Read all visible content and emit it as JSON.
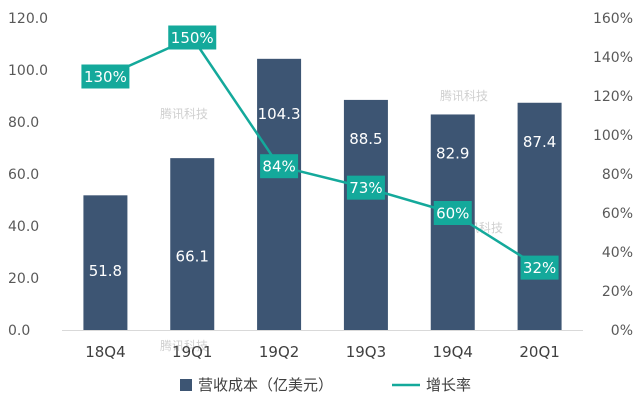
{
  "chart_data": {
    "type": "bar",
    "categories": [
      "18Q4",
      "19Q1",
      "19Q2",
      "19Q3",
      "19Q4",
      "20Q1"
    ],
    "series": [
      {
        "name": "营收成本（亿美元）",
        "type": "bar",
        "axis": "left",
        "values": [
          51.8,
          66.1,
          104.3,
          88.5,
          82.9,
          87.4
        ],
        "labels": [
          "51.8",
          "66.1",
          "104.3",
          "88.5",
          "82.9",
          "87.4"
        ]
      },
      {
        "name": "增长率",
        "type": "line",
        "axis": "right",
        "values": [
          130,
          150,
          84,
          73,
          60,
          32
        ],
        "labels": [
          "130%",
          "150%",
          "84%",
          "73%",
          "60%",
          "32%"
        ]
      }
    ],
    "y_left": {
      "ylim": [
        0,
        120
      ],
      "ticks": [
        "0.0",
        "20.0",
        "40.0",
        "60.0",
        "80.0",
        "100.0",
        "120.0"
      ]
    },
    "y_right": {
      "ylim": [
        0,
        160
      ],
      "ticks": [
        "0%",
        "20%",
        "40%",
        "60%",
        "80%",
        "100%",
        "120%",
        "140%",
        "160%"
      ]
    },
    "legend_position": "bottom",
    "grid": false,
    "colors": {
      "bar": "#3d5573",
      "line": "#14a99b",
      "label_box": "#14a99b"
    },
    "watermark": "腾讯科技"
  }
}
